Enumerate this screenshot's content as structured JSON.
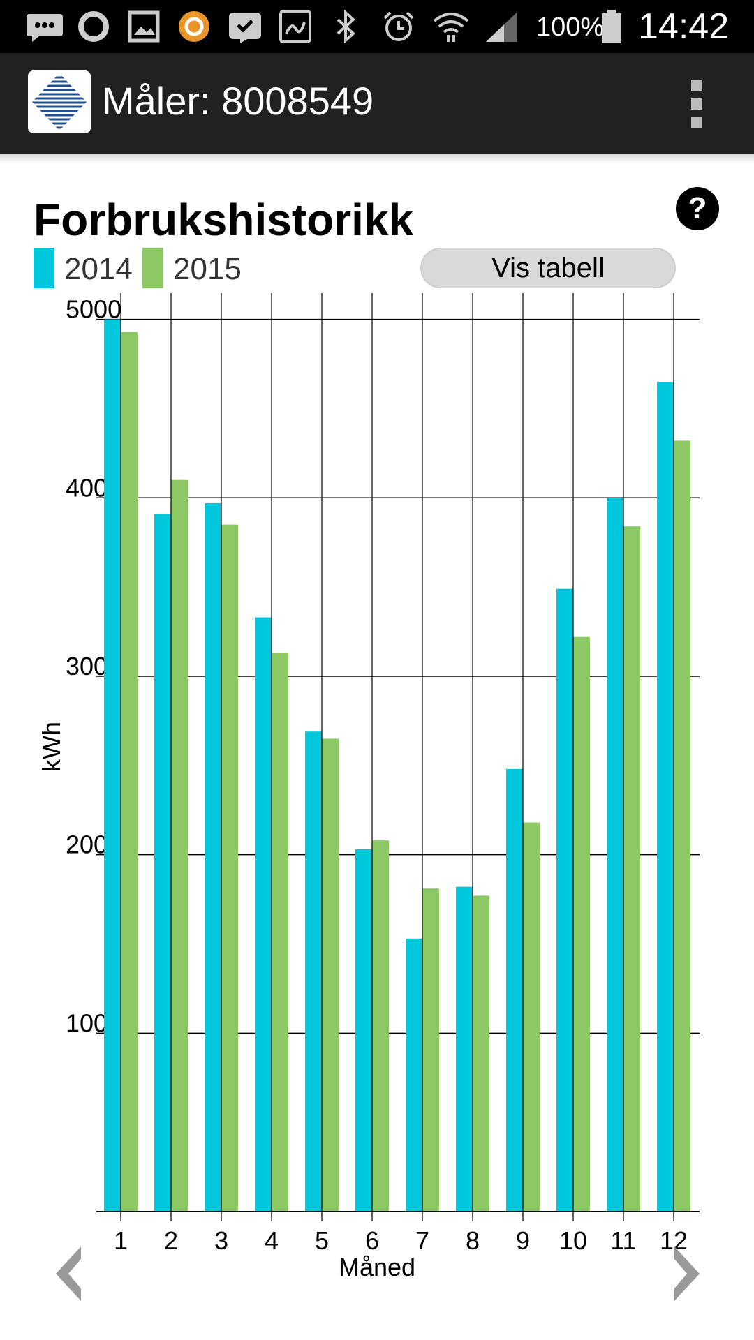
{
  "status_bar": {
    "battery": "100%",
    "time": "14:42",
    "icons": [
      "messages-icon",
      "circle-icon",
      "gallery-icon",
      "app-icon",
      "check-icon",
      "photo-icon",
      "bluetooth-icon",
      "alarm-icon",
      "wifi-icon",
      "signal-icon",
      "battery-icon"
    ]
  },
  "app_bar": {
    "title": "Måler: 8008549",
    "logo": "app-logo",
    "menu_icon": "overflow-menu-icon"
  },
  "main": {
    "title": "Forbrukshistorikk",
    "help_label": "?",
    "show_table_button": "Vis tabell"
  },
  "colors": {
    "series_2014": "#00c8dc",
    "series_2015": "#8cc864",
    "grid": "#000000"
  },
  "chart_data": {
    "type": "bar",
    "xlabel": "Måned",
    "ylabel": "kWh",
    "ylim": [
      0,
      5100
    ],
    "y_ticks": [
      1000,
      2000,
      3000,
      4000,
      5000
    ],
    "grid": true,
    "legend_placement": "top-left",
    "categories": [
      "1",
      "2",
      "3",
      "4",
      "5",
      "6",
      "7",
      "8",
      "9",
      "10",
      "11",
      "12"
    ],
    "series": [
      {
        "name": "2014",
        "color": "#00c8dc",
        "values": [
          5000,
          3910,
          3970,
          3330,
          2690,
          2030,
          1530,
          1820,
          2480,
          3490,
          4000,
          4650
        ]
      },
      {
        "name": "2015",
        "color": "#8cc864",
        "values": [
          4930,
          4100,
          3850,
          3130,
          2650,
          2080,
          1810,
          1770,
          2180,
          3220,
          3840,
          4320
        ]
      }
    ]
  },
  "nav": {
    "prev_icon": "chevron-left-icon",
    "next_icon": "chevron-right-icon"
  }
}
